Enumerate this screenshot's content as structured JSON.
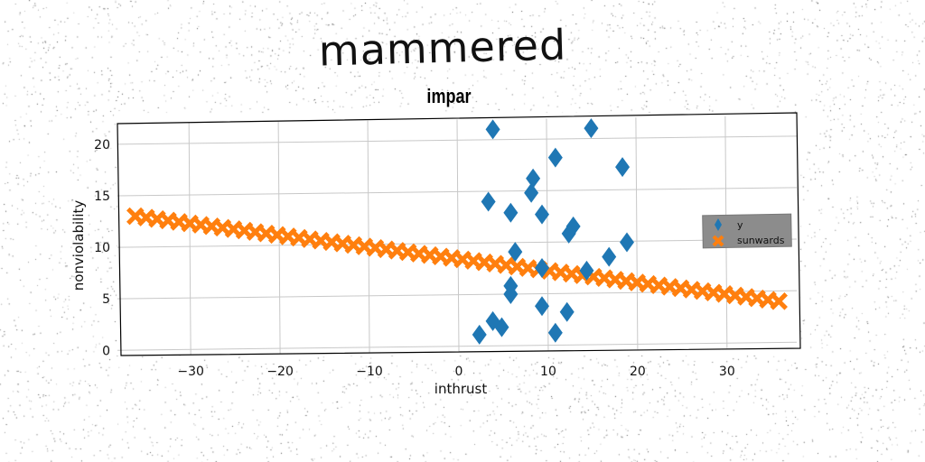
{
  "title": "mammered",
  "subtitle": "impar",
  "chart_data": {
    "type": "scatter",
    "xlabel": "inthrust",
    "ylabel": "nonviolability",
    "xlim": [
      -38,
      38
    ],
    "ylim": [
      -0.5,
      22
    ],
    "xticks": [
      -30,
      -20,
      -10,
      0,
      10,
      20,
      30
    ],
    "yticks": [
      0,
      5,
      10,
      15,
      20
    ],
    "grid": true,
    "legend": "center-right",
    "series": [
      {
        "name": "y",
        "marker": "diamond",
        "color": "#1f77b4",
        "x": [
          4,
          15,
          11,
          18.5,
          8.5,
          8.3,
          3.5,
          6,
          9.5,
          13,
          12.5,
          19,
          6.5,
          17,
          9.5,
          14.5,
          6,
          6,
          9.5,
          12.3,
          4,
          5,
          2.5,
          11
        ],
        "y": [
          21,
          21,
          18.2,
          17.2,
          16.2,
          14.8,
          14,
          12.9,
          12.7,
          11.5,
          10.8,
          9.9,
          9.1,
          8.5,
          7.5,
          7.2,
          5.8,
          5,
          3.8,
          3.2,
          2.4,
          1.8,
          1.1,
          1.2
        ]
      },
      {
        "name": "sunwards",
        "marker": "x",
        "color": "#ff7f0e",
        "x_start": -36,
        "x_end": 36,
        "count": 60,
        "y_start": 13,
        "y_end": 4
      }
    ]
  }
}
